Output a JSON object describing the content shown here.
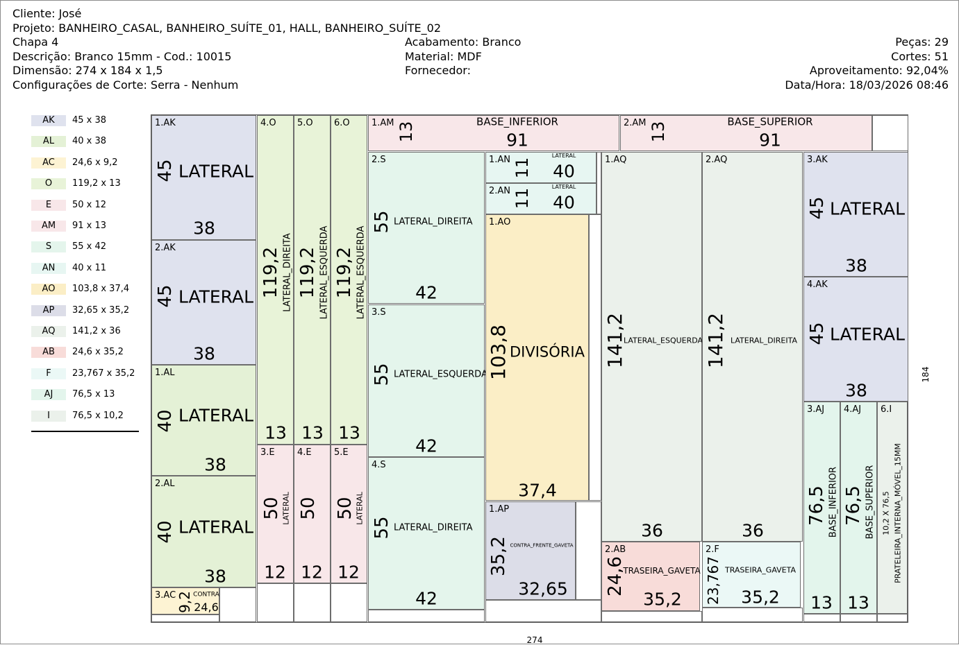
{
  "header": {
    "cliente": "Cliente: José",
    "projeto": "Projeto: BANHEIRO_CASAL, BANHEIRO_SUÍTE_01, HALL, BANHEIRO_SUÍTE_02",
    "chapa": "Chapa 4",
    "descricao": "Descrição: Branco 15mm - Cod.: 10015",
    "dimensao": "Dimensão: 274 x 184 x 1,5",
    "config": "Configurações de Corte: Serra - Nenhum",
    "acabamento": "Acabamento: Branco",
    "material": "Material: MDF",
    "fornecedor": "Fornecedor:",
    "pecas": "Peças: 29",
    "cortes": "Cortes: 51",
    "aproveitamento": "Aproveitamento: 92,04%",
    "datahora": "Data/Hora: 18/03/2026 08:46"
  },
  "legend": [
    {
      "code": "AK",
      "dim": "45 x 38",
      "color": "#dfe2ee"
    },
    {
      "code": "AL",
      "dim": "40 x 38",
      "color": "#e4f1d6"
    },
    {
      "code": "AC",
      "dim": "24,6 x 9,2",
      "color": "#fdf3d3"
    },
    {
      "code": "O",
      "dim": "119,2 x 13",
      "color": "#e8f3d8"
    },
    {
      "code": "E",
      "dim": "50 x 12",
      "color": "#f8e7e9"
    },
    {
      "code": "AM",
      "dim": "91 x 13",
      "color": "#f8e7e9"
    },
    {
      "code": "S",
      "dim": "55 x 42",
      "color": "#e4f5ec"
    },
    {
      "code": "AN",
      "dim": "40 x 11",
      "color": "#e7f6f2"
    },
    {
      "code": "AO",
      "dim": "103,8 x 37,4",
      "color": "#fbeec6"
    },
    {
      "code": "AP",
      "dim": "32,65 x 35,2",
      "color": "#dcdde8"
    },
    {
      "code": "AQ",
      "dim": "141,2 x 36",
      "color": "#ebf1eb"
    },
    {
      "code": "AB",
      "dim": "24,6 x 35,2",
      "color": "#f8dcd9"
    },
    {
      "code": "F",
      "dim": "23,767 x 35,2",
      "color": "#ebf8f6"
    },
    {
      "code": "AJ",
      "dim": "76,5 x 13",
      "color": "#e3f5ec"
    },
    {
      "code": "I",
      "dim": "76,5 x 10,2",
      "color": "#ebf1eb"
    }
  ],
  "sheet_dims": {
    "width_label": "274",
    "height_label": "184"
  },
  "pieces": [
    {
      "id": "1.AK",
      "code": "AK",
      "length": "45",
      "width": "38",
      "label": "LATERAL"
    },
    {
      "id": "2.AK",
      "code": "AK",
      "length": "45",
      "width": "38",
      "label": "LATERAL"
    },
    {
      "id": "1.AL",
      "code": "AL",
      "length": "40",
      "width": "38",
      "label": "LATERAL"
    },
    {
      "id": "2.AL",
      "code": "AL",
      "length": "40",
      "width": "38",
      "label": "LATERAL"
    },
    {
      "id": "3.AC",
      "code": "AC",
      "length": "9,2",
      "width": "24,6",
      "label": "CONTRA"
    },
    {
      "id": "4.O",
      "code": "O",
      "length": "119,2",
      "width": "13",
      "label": "LATERAL_DIREITA"
    },
    {
      "id": "5.O",
      "code": "O",
      "length": "119,2",
      "width": "13",
      "label": "LATERAL_ESQUERDA"
    },
    {
      "id": "6.O",
      "code": "O",
      "length": "119,2",
      "width": "13",
      "label": "LATERAL_ESQUERDA"
    },
    {
      "id": "3.E",
      "code": "E",
      "length": "50",
      "width": "12",
      "label": "LATERAL"
    },
    {
      "id": "4.E",
      "code": "E",
      "length": "50",
      "width": "12",
      "label": ""
    },
    {
      "id": "5.E",
      "code": "E",
      "length": "50",
      "width": "12",
      "label": "LATERAL"
    },
    {
      "id": "1.AM",
      "code": "AM",
      "length": "13",
      "width": "91",
      "label": "BASE_INFERIOR"
    },
    {
      "id": "2.AM",
      "code": "AM",
      "length": "13",
      "width": "91",
      "label": "BASE_SUPERIOR"
    },
    {
      "id": "2.S",
      "code": "S",
      "length": "55",
      "width": "42",
      "label": "LATERAL_DIREITA"
    },
    {
      "id": "3.S",
      "code": "S",
      "length": "55",
      "width": "42",
      "label": "LATERAL_ESQUERDA"
    },
    {
      "id": "4.S",
      "code": "S",
      "length": "55",
      "width": "42",
      "label": "LATERAL_DIREITA"
    },
    {
      "id": "1.AN",
      "code": "AN",
      "length": "11",
      "width": "40",
      "label": "LATERAL"
    },
    {
      "id": "2.AN",
      "code": "AN",
      "length": "11",
      "width": "40",
      "label": "LATERAL"
    },
    {
      "id": "1.AO",
      "code": "AO",
      "length": "103,8",
      "width": "37,4",
      "label": "DIVISÓRIA"
    },
    {
      "id": "1.AP",
      "code": "AP",
      "length": "35,2",
      "width": "32,65",
      "label": "CONTRA_FRENTE_GAVETA"
    },
    {
      "id": "1.AQ",
      "code": "AQ",
      "length": "141,2",
      "width": "36",
      "label": "LATERAL_ESQUERDA"
    },
    {
      "id": "2.AQ",
      "code": "AQ",
      "length": "141,2",
      "width": "36",
      "label": "LATERAL_DIREITA"
    },
    {
      "id": "2.AB",
      "code": "AB",
      "length": "24,6",
      "width": "35,2",
      "label": "TRASEIRA_GAVETA"
    },
    {
      "id": "2.F",
      "code": "F",
      "length": "23,767",
      "width": "35,2",
      "label": "TRASEIRA_GAVETA"
    },
    {
      "id": "3.AK",
      "code": "AK",
      "length": "45",
      "width": "38",
      "label": "LATERAL"
    },
    {
      "id": "4.AK",
      "code": "AK",
      "length": "45",
      "width": "38",
      "label": "LATERAL"
    },
    {
      "id": "3.AJ",
      "code": "AJ",
      "length": "76,5",
      "width": "13",
      "label": "BASE_INFERIOR"
    },
    {
      "id": "4.AJ",
      "code": "AJ",
      "length": "76,5",
      "width": "13",
      "label": "BASE_SUPERIOR"
    },
    {
      "id": "6.I",
      "code": "I",
      "length": "10,2 X 76,5",
      "width": "",
      "label": "PRATELEIRA_INTERNA_MÓVEL_15MM"
    }
  ]
}
